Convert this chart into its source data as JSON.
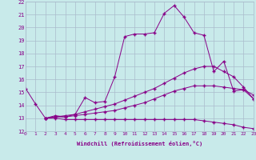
{
  "xlabel": "Windchill (Refroidissement éolien,°C)",
  "bg_color": "#c8eaea",
  "line_color": "#880088",
  "grid_color": "#aabbcc",
  "xmin": 0,
  "xmax": 23,
  "ymin": 12,
  "ymax": 22,
  "curves": [
    {
      "x": [
        0,
        1,
        2,
        3,
        4,
        5,
        6,
        7,
        8,
        9,
        10,
        11,
        12,
        13,
        14,
        15,
        16,
        17,
        18,
        19,
        20,
        21,
        22,
        23
      ],
      "y": [
        15.3,
        14.1,
        13.0,
        13.2,
        13.1,
        13.3,
        14.6,
        14.2,
        14.3,
        16.2,
        19.3,
        19.5,
        19.5,
        19.6,
        21.1,
        21.7,
        20.8,
        19.6,
        19.4,
        16.6,
        17.4,
        15.1,
        15.2,
        14.5
      ]
    },
    {
      "x": [
        2,
        3,
        4,
        5,
        6,
        7,
        8,
        9,
        10,
        11,
        12,
        13,
        14,
        15,
        16,
        17,
        18,
        19,
        20,
        21,
        22,
        23
      ],
      "y": [
        13.0,
        13.1,
        13.2,
        13.3,
        13.5,
        13.7,
        13.9,
        14.1,
        14.4,
        14.7,
        15.0,
        15.3,
        15.7,
        16.1,
        16.5,
        16.8,
        17.0,
        17.0,
        16.6,
        16.2,
        15.4,
        14.5
      ]
    },
    {
      "x": [
        2,
        3,
        4,
        5,
        6,
        7,
        8,
        9,
        10,
        11,
        12,
        13,
        14,
        15,
        16,
        17,
        18,
        19,
        20,
        21,
        22,
        23
      ],
      "y": [
        13.0,
        13.1,
        13.1,
        13.2,
        13.3,
        13.4,
        13.5,
        13.6,
        13.8,
        14.0,
        14.2,
        14.5,
        14.8,
        15.1,
        15.3,
        15.5,
        15.5,
        15.5,
        15.4,
        15.3,
        15.2,
        14.8
      ]
    },
    {
      "x": [
        2,
        3,
        4,
        5,
        6,
        7,
        8,
        9,
        10,
        11,
        12,
        13,
        14,
        15,
        16,
        17,
        18,
        19,
        20,
        21,
        22,
        23
      ],
      "y": [
        13.0,
        13.0,
        12.9,
        12.9,
        12.9,
        12.9,
        12.9,
        12.9,
        12.9,
        12.9,
        12.9,
        12.9,
        12.9,
        12.9,
        12.9,
        12.9,
        12.8,
        12.7,
        12.6,
        12.5,
        12.3,
        12.2
      ]
    }
  ]
}
